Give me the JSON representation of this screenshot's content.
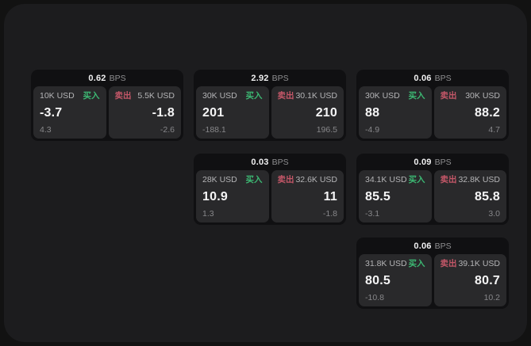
{
  "labels": {
    "bps": "BPS",
    "buy": "买入",
    "sell": "卖出"
  },
  "colors": {
    "background": "#121212",
    "surface": "#1c1c1e",
    "card": "#101012",
    "panel": "#29292b",
    "buy_accent": "#3cb873",
    "sell_accent": "#c45768",
    "text_primary": "#f5f5f6",
    "text_secondary": "#b4b4b6",
    "text_muted": "#87878a"
  },
  "cards": [
    {
      "bps": "0.62",
      "buy": {
        "amount": "10K USD",
        "price": "-3.7",
        "change": "4.3"
      },
      "sell": {
        "amount": "5.5K USD",
        "price": "-1.8",
        "change": "-2.6"
      }
    },
    {
      "bps": "2.92",
      "buy": {
        "amount": "30K USD",
        "price": "201",
        "change": "-188.1"
      },
      "sell": {
        "amount": "30.1K USD",
        "price": "210",
        "change": "196.5"
      }
    },
    {
      "bps": "0.06",
      "buy": {
        "amount": "30K USD",
        "price": "88",
        "change": "-4.9"
      },
      "sell": {
        "amount": "30K USD",
        "price": "88.2",
        "change": "4.7"
      }
    },
    {
      "bps": "0.03",
      "buy": {
        "amount": "28K USD",
        "price": "10.9",
        "change": "1.3"
      },
      "sell": {
        "amount": "32.6K USD",
        "price": "11",
        "change": "-1.8"
      }
    },
    {
      "bps": "0.09",
      "buy": {
        "amount": "34.1K USD",
        "price": "85.5",
        "change": "-3.1"
      },
      "sell": {
        "amount": "32.8K USD",
        "price": "85.8",
        "change": "3.0"
      }
    },
    {
      "bps": "0.06",
      "buy": {
        "amount": "31.8K USD",
        "price": "80.5",
        "change": "-10.8"
      },
      "sell": {
        "amount": "39.1K USD",
        "price": "80.7",
        "change": "10.2"
      }
    }
  ]
}
